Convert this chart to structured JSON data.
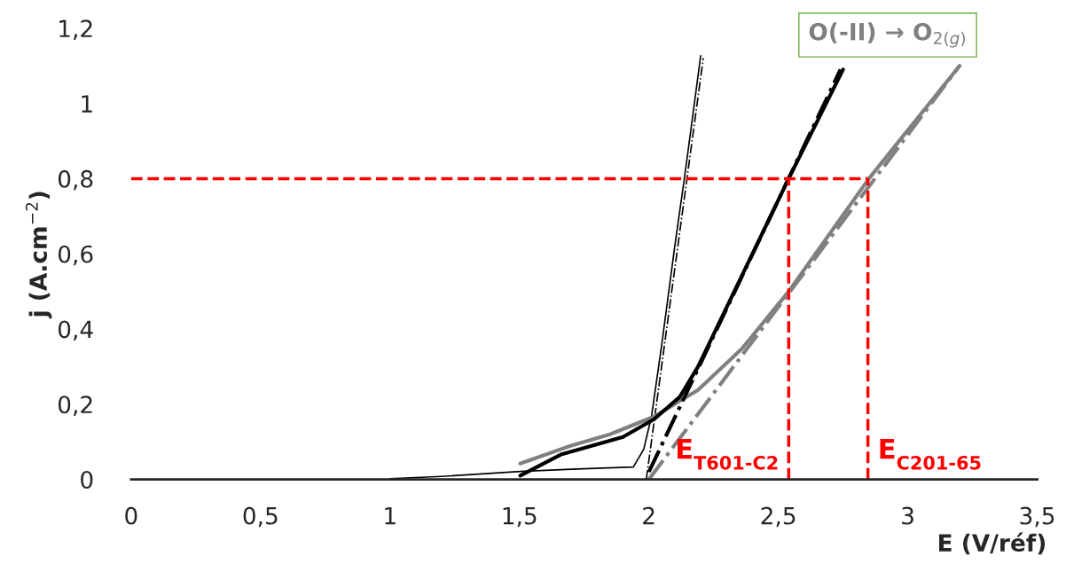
{
  "chart_data": {
    "type": "line",
    "xlabel": "E (V/réf)",
    "ylabel": "j (A.cm$^{−2}$)",
    "xlim": [
      0,
      3.5
    ],
    "ylim": [
      0,
      1.2
    ],
    "xticks": [
      0,
      {
        "value": 0.5,
        "label": "0,5"
      },
      1,
      {
        "value": 1.5,
        "label": "1,5"
      },
      2,
      {
        "value": 2.5,
        "label": "2,5"
      },
      3,
      {
        "value": 3.5,
        "label": "3,5"
      }
    ],
    "yticks": [
      0,
      {
        "value": 0.2,
        "label": "0,2"
      },
      {
        "value": 0.4,
        "label": "0,4"
      },
      {
        "value": 0.6,
        "label": "0,6"
      },
      {
        "value": 0.8,
        "label": "0,8"
      },
      1,
      {
        "value": 1.2,
        "label": "1,2"
      }
    ],
    "grid": false,
    "legend": false,
    "series": [
      {
        "color": "#000000",
        "line_style": "solid",
        "x": [
          1.0,
          1.2,
          1.503,
          1.7,
          1.94,
          1.98,
          2.01,
          2.05,
          2.1,
          2.137,
          2.17,
          2.2
        ],
        "values": [
          0.002,
          0.008,
          0.021,
          0.027,
          0.033,
          0.08,
          0.167,
          0.36,
          0.62,
          0.8,
          0.97,
          1.127
        ]
      },
      {
        "color": "#000000",
        "line_style": "dashdot",
        "x": [
          1.99,
          2.21
        ],
        "values": [
          0,
          1.12
        ]
      },
      {
        "color": "#808080",
        "line_style": "solid",
        "x": [
          1.503,
          1.7,
          1.85,
          2.02,
          2.19,
          2.36,
          2.54,
          2.85,
          3.2
        ],
        "values": [
          0.042,
          0.09,
          0.12,
          0.167,
          0.238,
          0.348,
          0.5,
          0.8,
          1.1
        ]
      },
      {
        "color": "#808080",
        "line_style": "dashdot",
        "x": [
          2.0,
          3.2
        ],
        "values": [
          0,
          1.1
        ]
      },
      {
        "color": "#000000",
        "line_style": "solid",
        "x": [
          1.503,
          1.66,
          1.9,
          2.02,
          2.12,
          2.19,
          2.54,
          2.75
        ],
        "values": [
          0.01,
          0.066,
          0.113,
          0.16,
          0.22,
          0.3,
          0.8,
          1.09
        ]
      },
      {
        "color": "#000000",
        "line_style": "dashdot",
        "x": [
          2.0,
          2.74
        ],
        "values": [
          0.02,
          1.09
        ]
      }
    ],
    "ref_lines": [
      {
        "axis": "y",
        "value": 0.8,
        "color": "#ff0000",
        "line_style": "dashed"
      },
      {
        "axis": "x",
        "value": 2.54,
        "label": "E$_{T601-C2}$",
        "color": "#ff0000",
        "line_style": "dashed"
      },
      {
        "axis": "x",
        "value": 2.846,
        "label": "E$_{C201-65}$",
        "color": "#ff0000",
        "line_style": "dashed"
      }
    ],
    "annotations": [
      "O(-II) → O$_{2(g)}$"
    ]
  }
}
